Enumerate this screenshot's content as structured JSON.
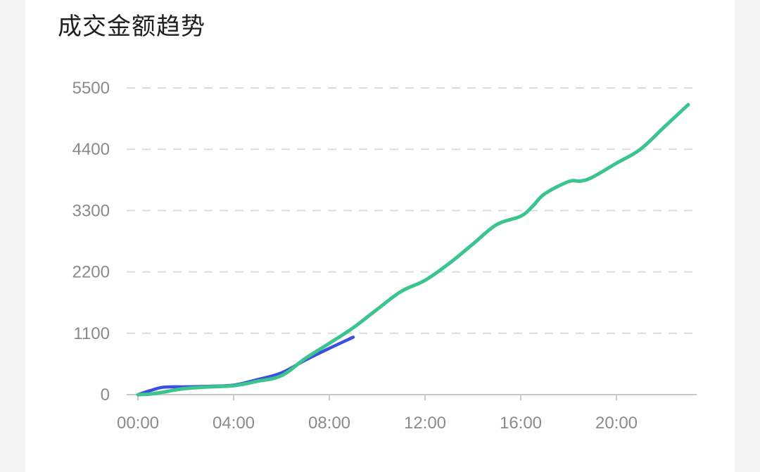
{
  "chart_data": {
    "type": "line",
    "title": "成交金额趋势",
    "x_ticks": [
      "00:00",
      "04:00",
      "08:00",
      "12:00",
      "16:00",
      "20:00"
    ],
    "y_ticks": [
      0,
      1100,
      2200,
      3300,
      4400,
      5500
    ],
    "ylim": [
      0,
      5500
    ],
    "xlim_hours": [
      0,
      24
    ],
    "grid": "horizontal-dashed",
    "series": [
      {
        "color": "#3d4fe0",
        "x": [
          0,
          0.5,
          1,
          1.5,
          2,
          3,
          4,
          5,
          6,
          7,
          8,
          9
        ],
        "values": [
          0,
          70,
          130,
          140,
          140,
          150,
          170,
          270,
          390,
          620,
          830,
          1030
        ]
      },
      {
        "color": "#3cc48e",
        "x": [
          0,
          0.5,
          1,
          1.5,
          2,
          3,
          4,
          5,
          6,
          7,
          8,
          9,
          10,
          11,
          12,
          13,
          14,
          15,
          16,
          16.5,
          17,
          18,
          18.5,
          19,
          20,
          21,
          22,
          23
        ],
        "values": [
          0,
          10,
          40,
          80,
          110,
          140,
          160,
          240,
          340,
          650,
          920,
          1200,
          1530,
          1850,
          2050,
          2350,
          2700,
          3050,
          3200,
          3380,
          3600,
          3820,
          3830,
          3900,
          4150,
          4400,
          4800,
          5200
        ]
      }
    ]
  }
}
